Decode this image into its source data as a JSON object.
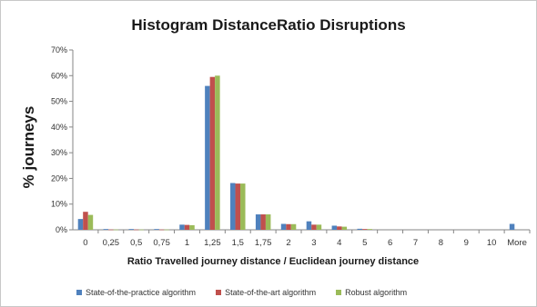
{
  "chart_data": {
    "type": "bar",
    "title": "Histogram DistanceRatio Disruptions",
    "xlabel": "Ratio Travelled journey distance / Euclidean journey distance",
    "ylabel": "% journeys",
    "ylim": [
      0,
      70
    ],
    "yticks": [
      "0%",
      "10%",
      "20%",
      "30%",
      "40%",
      "50%",
      "60%",
      "70%"
    ],
    "grid": false,
    "legend_position": "bottom",
    "categories": [
      "0",
      "0,25",
      "0,5",
      "0,75",
      "1",
      "1,25",
      "1,5",
      "1,75",
      "2",
      "3",
      "4",
      "5",
      "6",
      "7",
      "8",
      "9",
      "10",
      "More"
    ],
    "series": [
      {
        "name": "State-of-the-practice algorithm",
        "color": "#4f81bd",
        "values": [
          4.2,
          0.3,
          0.3,
          0.3,
          2.0,
          56.0,
          18.2,
          6.0,
          2.3,
          3.3,
          1.6,
          0.4,
          0,
          0,
          0,
          0,
          0,
          2.3
        ]
      },
      {
        "name": "State-of-the-art algorithm",
        "color": "#c0504d",
        "values": [
          7.0,
          0.1,
          0.1,
          0.1,
          1.9,
          59.5,
          18.0,
          6.0,
          2.2,
          2.0,
          1.3,
          0.3,
          0,
          0,
          0,
          0,
          0,
          0
        ]
      },
      {
        "name": "Robust algorithm",
        "color": "#9bbb59",
        "values": [
          5.8,
          0.1,
          0.1,
          0.1,
          1.8,
          60.0,
          18.0,
          6.0,
          2.2,
          2.0,
          1.2,
          0.3,
          0,
          0,
          0,
          0,
          0,
          0
        ]
      }
    ]
  }
}
